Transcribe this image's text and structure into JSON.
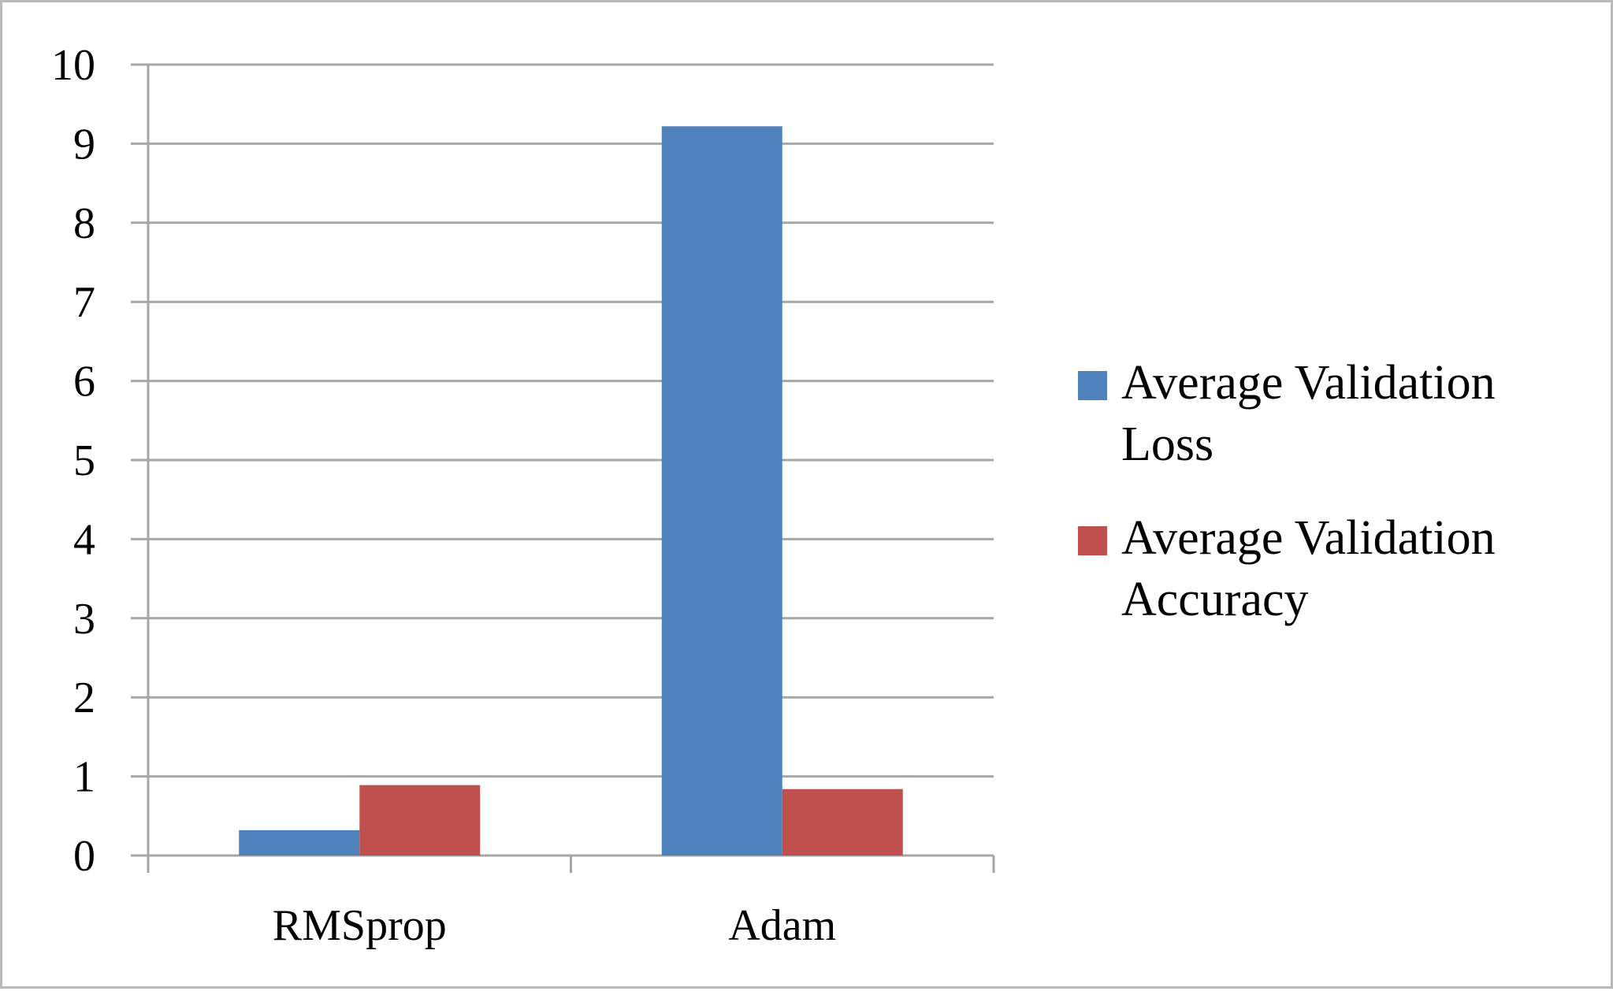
{
  "chart_data": {
    "type": "bar",
    "categories": [
      "RMSprop",
      "Adam"
    ],
    "series": [
      {
        "name": "Average Validation Loss",
        "values": [
          0.32,
          9.22
        ],
        "color": "#4f81bd"
      },
      {
        "name": "Average Validation Accuracy",
        "values": [
          0.89,
          0.84
        ],
        "color": "#c0504d"
      }
    ],
    "ylim": [
      0,
      10
    ],
    "yticks": [
      "0",
      "1",
      "2",
      "3",
      "4",
      "5",
      "6",
      "7",
      "8",
      "9",
      "10"
    ],
    "grid": true,
    "legend_position": "right",
    "title": "",
    "xlabel": "",
    "ylabel": ""
  },
  "legend": {
    "items": [
      {
        "lines": [
          "Average Validation",
          "Loss"
        ]
      },
      {
        "lines": [
          "Average Validation",
          "Accuracy"
        ]
      }
    ]
  },
  "colors": {
    "gridline": "#a6a6a6",
    "axis": "#a6a6a6",
    "frame_border": "#b9b9b9"
  }
}
